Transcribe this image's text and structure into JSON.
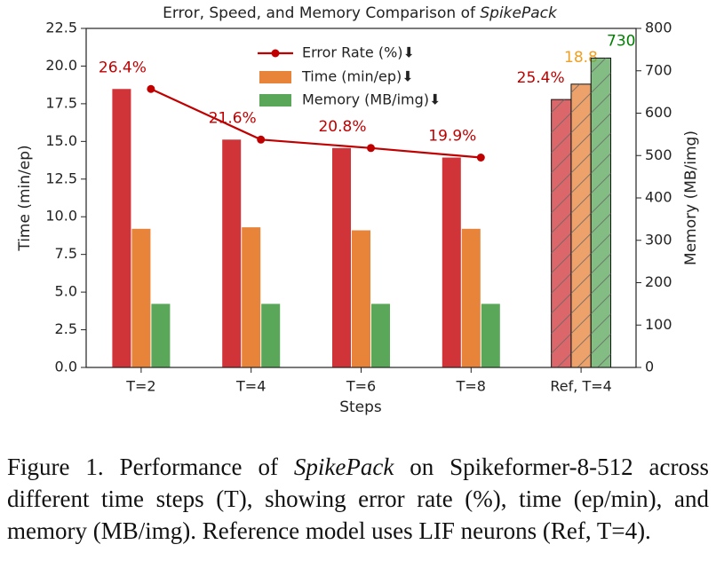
{
  "chart_data": {
    "type": "bar",
    "title": "Error, Speed, and Memory Comparison of ",
    "title_emphasis": "SpikePack",
    "xlabel": "Steps",
    "ylabel": "Time (min/ep)",
    "y2label": "Memory (MB/img)",
    "categories": [
      "T=2",
      "T=4",
      "T=6",
      "T=8"
    ],
    "series": [
      {
        "name": "Error Rate (%)⬇",
        "color": "#d03438",
        "line_color": "#c00000",
        "label_color": "#c00000",
        "axis": "y3",
        "values": [
          26.4,
          21.6,
          20.8,
          19.9
        ],
        "value_labels": [
          "26.4%",
          "21.6%",
          "20.8%",
          "19.9%"
        ]
      },
      {
        "name": "Time (min/ep)⬇",
        "color": "#e8833a",
        "label_color": "#f0a020",
        "axis": "y",
        "values": [
          9.2,
          9.3,
          9.1,
          9.2
        ]
      },
      {
        "name": "Memory (MB/img)⬇",
        "color": "#5aa75a",
        "label_color": "#008000",
        "axis": "y2",
        "values": [
          150,
          150,
          150,
          150
        ]
      }
    ],
    "reference": {
      "category": "Ref, T=4",
      "values": [
        25.4,
        18.8,
        730
      ],
      "value_labels": [
        "25.4%",
        "18.8",
        "730"
      ],
      "hatch": true
    },
    "ylim": [
      0,
      22.5
    ],
    "yticks": [
      {
        "value": 0,
        "label": "0.0"
      },
      2.5,
      {
        "value": 5,
        "label": "5.0"
      },
      7.5,
      {
        "value": 10,
        "label": "10.0"
      },
      12.5,
      {
        "value": 15,
        "label": "15.0"
      },
      17.5,
      {
        "value": 20,
        "label": "20.0"
      },
      22.5
    ],
    "y2lim": [
      0,
      800
    ],
    "y2ticks": [
      0,
      100,
      200,
      300,
      400,
      500,
      600,
      700,
      800
    ],
    "y3lim": [
      0,
      32.142857
    ],
    "legend": "upper center"
  },
  "caption": {
    "prefix": "Figure 1. Performance of ",
    "emphasis": "SpikePack",
    "suffix": " on Spikeformer-8-512 across different time steps (T), showing error rate (%), time (ep/min), and memory (MB/img). Reference model uses LIF neurons (Ref, T=4)."
  }
}
